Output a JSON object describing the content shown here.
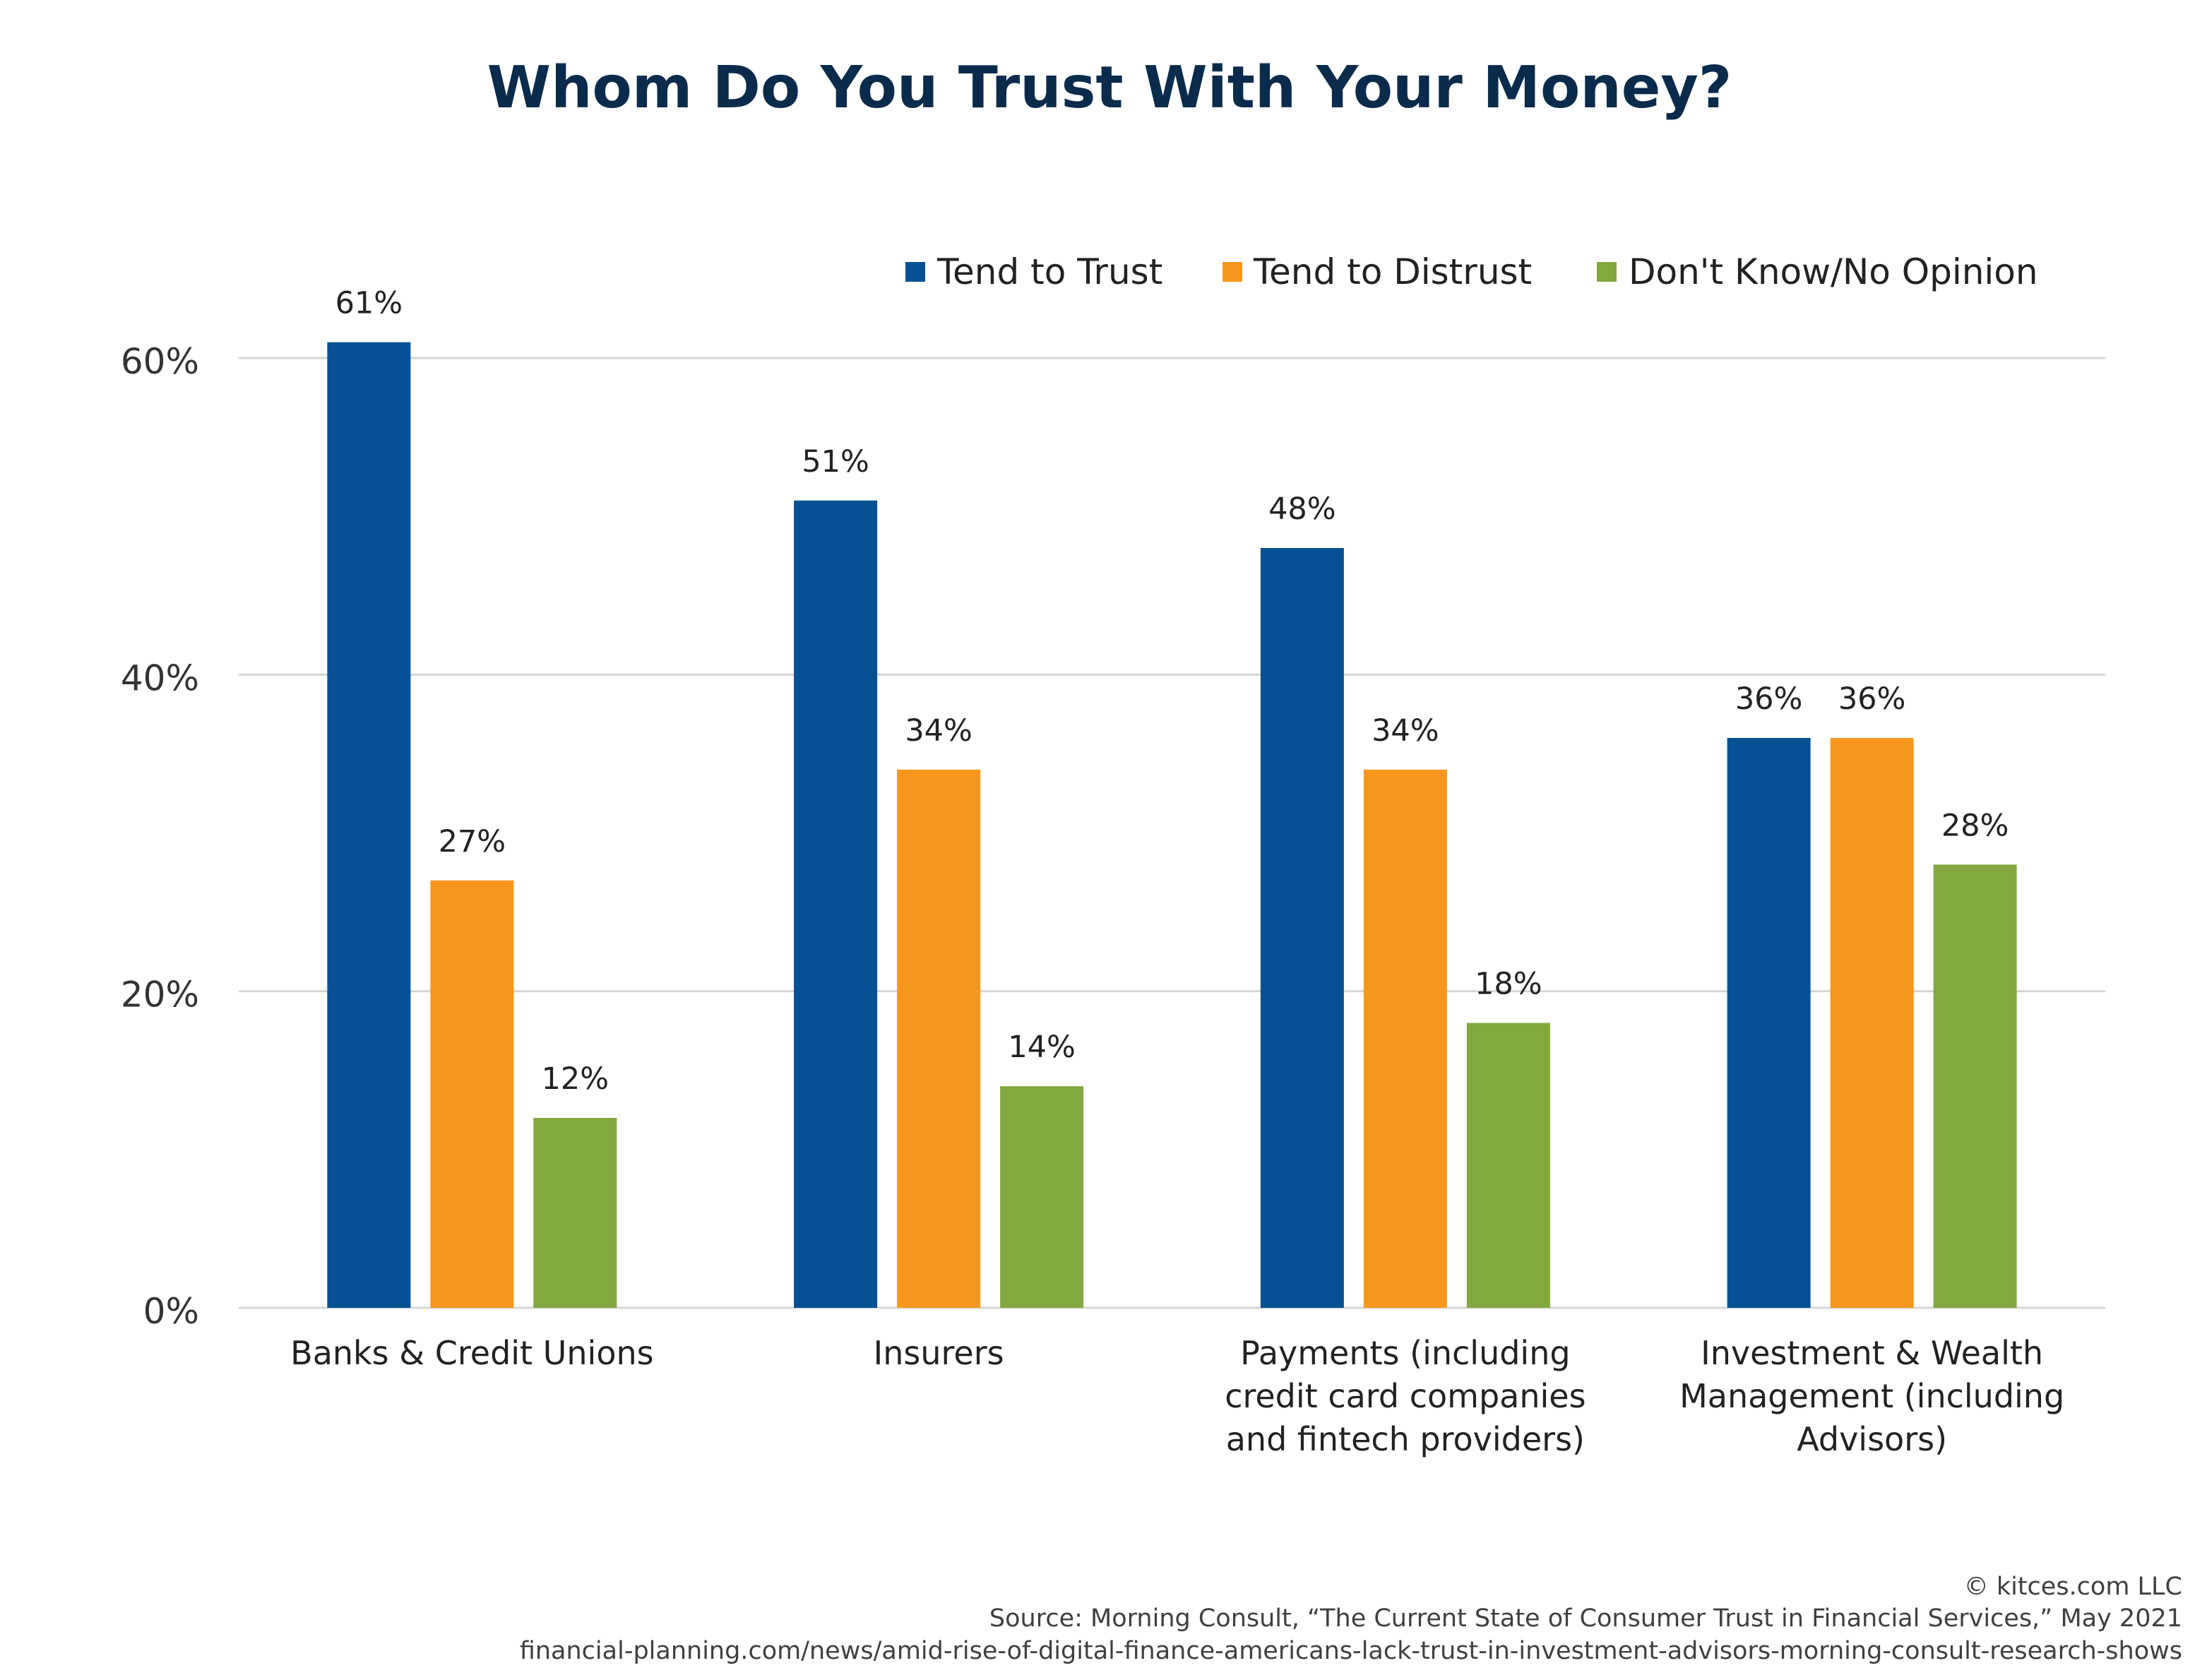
{
  "title": "Whom Do You Trust With Your Money?",
  "chart_data": {
    "type": "bar",
    "title": "Whom Do You Trust With Your Money?",
    "xlabel": "",
    "ylabel": "",
    "ylim": [
      0,
      60
    ],
    "yticks": [
      0,
      20,
      40,
      60
    ],
    "ytick_labels": [
      "0%",
      "20%",
      "40%",
      "60%"
    ],
    "grid": true,
    "legend_position": "top-right",
    "categories": [
      "Banks & Credit Unions",
      "Insurers",
      "Payments (including credit card companies and fintech providers)",
      "Investment & Wealth Management (including Advisors)"
    ],
    "category_label_lines": [
      [
        "Banks & Credit Unions"
      ],
      [
        "Insurers"
      ],
      [
        "Payments (including",
        "credit card companies",
        "and fintech providers)"
      ],
      [
        "Investment & Wealth",
        "Management (including",
        "Advisors)"
      ]
    ],
    "series": [
      {
        "name": "Tend to Trust",
        "color": "#055193",
        "values": [
          61,
          51,
          48,
          36
        ],
        "labels": [
          "61%",
          "51%",
          "48%",
          "36%"
        ]
      },
      {
        "name": "Tend to Distrust",
        "color": "#f7971e",
        "values": [
          27,
          34,
          34,
          36
        ],
        "labels": [
          "27%",
          "34%",
          "34%",
          "36%"
        ]
      },
      {
        "name": "Don't Know/No Opinion",
        "color": "#84a840",
        "values": [
          12,
          14,
          18,
          28
        ],
        "labels": [
          "12%",
          "14%",
          "18%",
          "28%"
        ]
      }
    ]
  },
  "footer": {
    "lines": [
      "© kitces.com LLC",
      "Source: Morning Consult, “The Current State of Consumer Trust in Financial Services,” May 2021",
      "financial-planning.com/news/amid-rise-of-digital-finance-americans-lack-trust-in-investment-advisors-morning-consult-research-shows"
    ]
  },
  "colors": {
    "title": "#0b2b4c",
    "text": "#222222",
    "axis_text": "#333333",
    "grid": "#d6d6d6",
    "footer_text": "#404040"
  }
}
